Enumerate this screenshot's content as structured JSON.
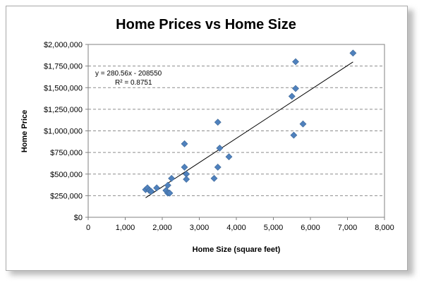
{
  "chart_data": {
    "type": "scatter",
    "title": "Home Prices vs Home Size",
    "xlabel": "Home Size (square feet)",
    "ylabel": "Home Price",
    "xlim": [
      0,
      8000
    ],
    "ylim": [
      0,
      2000000
    ],
    "x_ticks": [
      "0",
      "1,000",
      "2,000",
      "3,000",
      "4,000",
      "5,000",
      "6,000",
      "7,000",
      "8,000"
    ],
    "y_ticks": [
      "$0",
      "$250,000",
      "$500,000",
      "$750,000",
      "$1,000,000",
      "$1,250,000",
      "$1,500,000",
      "$1,750,000",
      "$2,000,000"
    ],
    "grid": "horizontal dashed",
    "marker_color": "#4f81bd",
    "trendline": {
      "slope": 280.56,
      "intercept": -208550,
      "equation": "y = 280.56x - 208550",
      "r_squared": "R² = 0.8751"
    },
    "points": [
      {
        "x": 1550,
        "y": 320000
      },
      {
        "x": 1600,
        "y": 340000
      },
      {
        "x": 1650,
        "y": 310000
      },
      {
        "x": 1700,
        "y": 300000
      },
      {
        "x": 1850,
        "y": 340000
      },
      {
        "x": 2100,
        "y": 310000
      },
      {
        "x": 2150,
        "y": 280000
      },
      {
        "x": 2200,
        "y": 280000
      },
      {
        "x": 2150,
        "y": 370000
      },
      {
        "x": 2250,
        "y": 450000
      },
      {
        "x": 2600,
        "y": 850000
      },
      {
        "x": 2600,
        "y": 580000
      },
      {
        "x": 2650,
        "y": 500000
      },
      {
        "x": 2650,
        "y": 440000
      },
      {
        "x": 3400,
        "y": 450000
      },
      {
        "x": 3500,
        "y": 580000
      },
      {
        "x": 3500,
        "y": 1100000
      },
      {
        "x": 3550,
        "y": 800000
      },
      {
        "x": 3800,
        "y": 700000
      },
      {
        "x": 5500,
        "y": 1400000
      },
      {
        "x": 5550,
        "y": 950000
      },
      {
        "x": 5600,
        "y": 1800000
      },
      {
        "x": 5600,
        "y": 1490000
      },
      {
        "x": 5800,
        "y": 1080000
      },
      {
        "x": 7150,
        "y": 1900000
      }
    ]
  }
}
